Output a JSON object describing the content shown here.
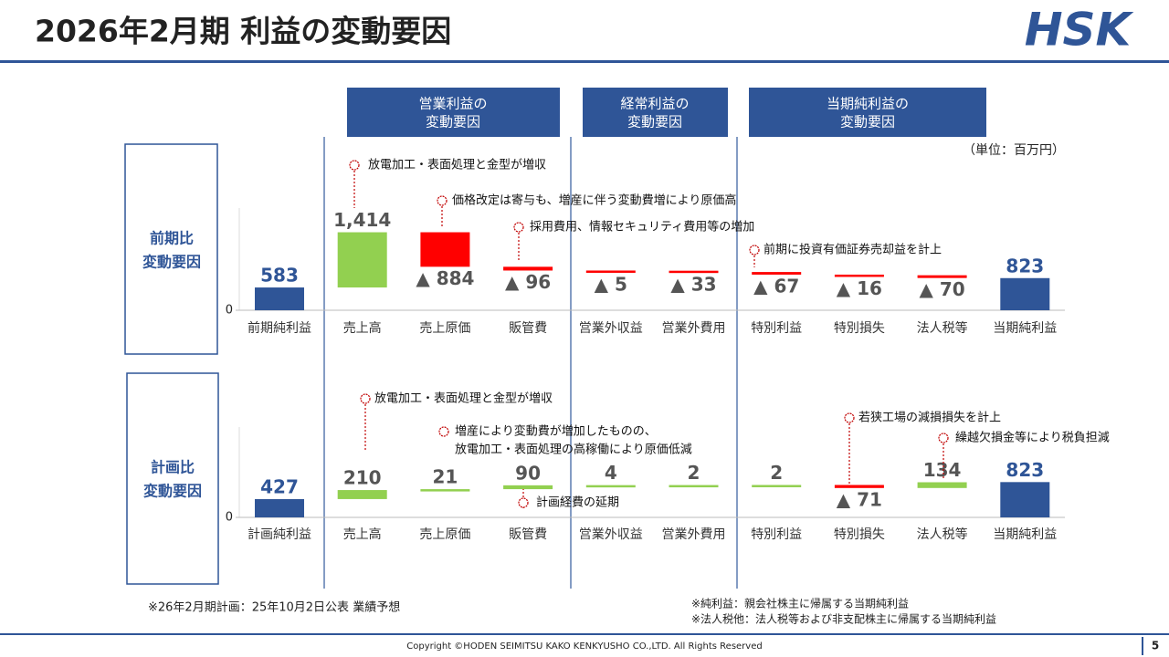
{
  "title": "2026年2月期 利益の変動要因",
  "logo": "HSK",
  "headers": [
    [
      "営業利益の",
      "変動要因"
    ],
    [
      "経常利益の",
      "変動要因"
    ],
    [
      "当期純利益の",
      "変動要因"
    ]
  ],
  "unit": "（単位：百万円）",
  "chart_data": [
    {
      "type": "waterfall",
      "row_label": [
        "前期比",
        "変動要因"
      ],
      "categories": [
        "前期純利益",
        "売上高",
        "売上原価",
        "販管費",
        "営業外収益",
        "営業外費用",
        "特別利益",
        "特別損失",
        "法人税等",
        "当期純利益"
      ],
      "values": [
        583,
        1414,
        -884,
        -96,
        -5,
        -33,
        -67,
        -16,
        -70,
        823
      ],
      "value_labels": [
        "583",
        "1,414",
        "▲ 884",
        "▲ 96",
        "▲ 5",
        "▲ 33",
        "▲ 67",
        "▲ 16",
        "▲ 70",
        "823"
      ],
      "measure": [
        "absolute",
        "relative",
        "relative",
        "relative",
        "relative",
        "relative",
        "relative",
        "relative",
        "relative",
        "absolute"
      ],
      "colors": {
        "total": "#2f5597",
        "increase": "#92d050",
        "decrease": "#ff0000"
      },
      "ylim": [
        0,
        2500
      ],
      "yticks": [
        0
      ],
      "annotations": [
        {
          "lines": [
            "放電加工・表面処理と金型が増収"
          ]
        },
        {
          "lines": [
            "価格改定は寄与も、増産に伴う変動費増により原価高"
          ]
        },
        {
          "lines": [
            "採用費用、情報セキュリティ費用等の増加"
          ]
        },
        {
          "lines": [
            "前期に投資有価証券売却益を計上"
          ]
        }
      ]
    },
    {
      "type": "waterfall",
      "row_label": [
        "計画比",
        "変動要因"
      ],
      "categories": [
        "計画純利益",
        "売上高",
        "売上原価",
        "販管費",
        "営業外収益",
        "営業外費用",
        "特別利益",
        "特別損失",
        "法人税等",
        "当期純利益"
      ],
      "values": [
        427,
        210,
        21,
        90,
        4,
        2,
        2,
        -71,
        134,
        823
      ],
      "value_labels": [
        "427",
        "210",
        "21",
        "90",
        "4",
        "2",
        "2",
        "▲ 71",
        "134",
        "823"
      ],
      "measure": [
        "absolute",
        "relative",
        "relative",
        "relative",
        "relative",
        "relative",
        "relative",
        "relative",
        "relative",
        "absolute"
      ],
      "colors": {
        "total": "#2f5597",
        "increase": "#92d050",
        "decrease": "#ff0000"
      },
      "ylim": [
        0,
        2000
      ],
      "yticks": [
        0
      ],
      "annotations": [
        {
          "lines": [
            "放電加工・表面処理と金型が増収"
          ]
        },
        {
          "lines": [
            "増産により変動費が増加したものの、",
            "放電加工・表面処理の高稼働により原価低減"
          ]
        },
        {
          "lines": [
            "計画経費の延期"
          ]
        },
        {
          "lines": [
            "若狭工場の減損損失を計上"
          ]
        },
        {
          "lines": [
            "繰越欠損金等により税負担減"
          ]
        }
      ]
    }
  ],
  "notes_left": "※26年2月期計画：25年10月2日公表 業績予想",
  "notes_right": [
    "※純利益：親会社株主に帰属する当期純利益",
    "※法人税他：法人税等および非支配株主に帰属する当期純利益"
  ],
  "copyright": "Copyright ©HODEN SEIMITSU KAKO KENKYUSHO CO.,LTD. All Rights Reserved",
  "page": "5"
}
